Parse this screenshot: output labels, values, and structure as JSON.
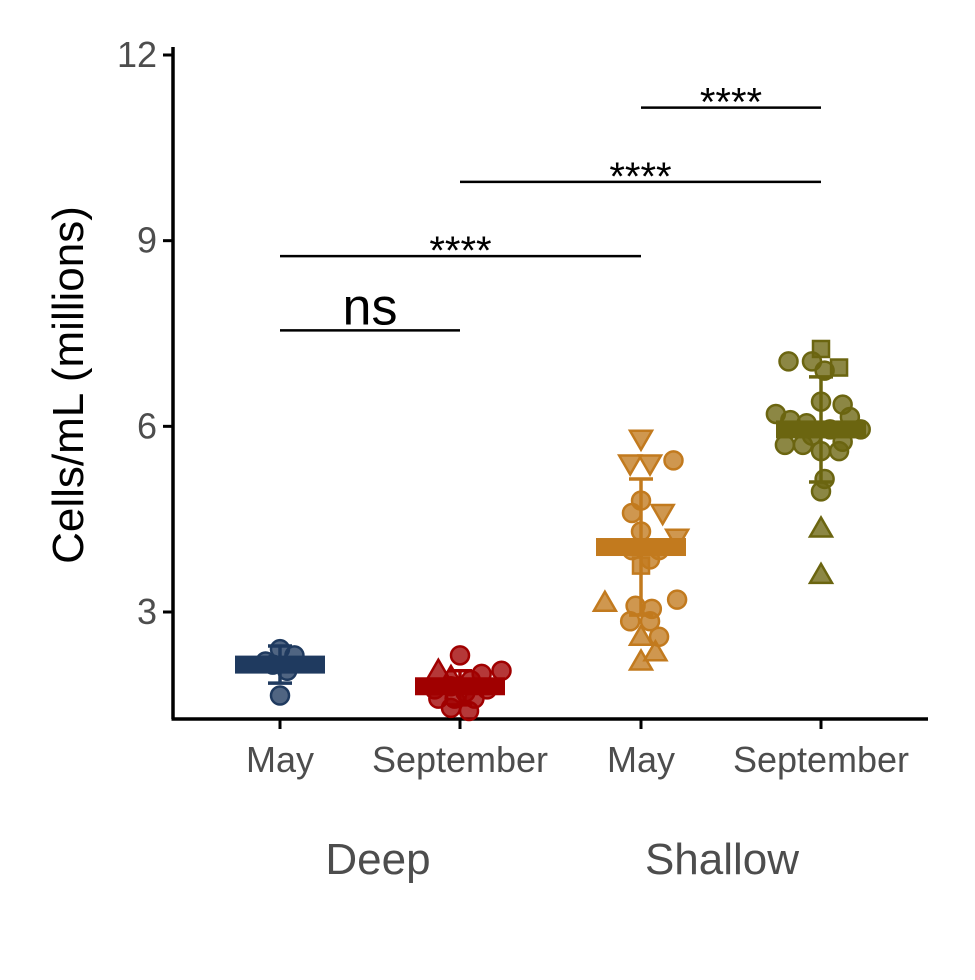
{
  "chart_data": {
    "type": "scatter",
    "ylabel": "Cells/mL (millions)",
    "ylim": [
      1.3,
      12.1
    ],
    "yticks": [
      3,
      6,
      9,
      12
    ],
    "categories": [
      "May",
      "September",
      "May",
      "September"
    ],
    "groups": [
      {
        "label": "Deep",
        "categories": [
          0,
          1
        ]
      },
      {
        "label": "Shallow",
        "categories": [
          2,
          3
        ]
      }
    ],
    "series": [
      {
        "category": 0,
        "color": "#1f3a5f",
        "mean": 2.15,
        "sd_low": 1.85,
        "sd_high": 2.45,
        "points": [
          {
            "x": 0.0,
            "y": 2.4,
            "shape": "circle"
          },
          {
            "x": 0.08,
            "y": 2.3,
            "shape": "circle"
          },
          {
            "x": -0.04,
            "y": 2.15,
            "shape": "circle"
          },
          {
            "x": 0.04,
            "y": 2.05,
            "shape": "circle"
          },
          {
            "x": -0.08,
            "y": 2.2,
            "shape": "circle"
          },
          {
            "x": 0.0,
            "y": 1.65,
            "shape": "circle"
          }
        ]
      },
      {
        "category": 1,
        "color": "#a00000",
        "mean": 1.8,
        "sd_low": 1.5,
        "sd_high": 2.05,
        "points": [
          {
            "x": 0.0,
            "y": 2.3,
            "shape": "circle"
          },
          {
            "x": -0.12,
            "y": 2.05,
            "shape": "triangle-up"
          },
          {
            "x": -0.05,
            "y": 1.95,
            "shape": "triangle-up"
          },
          {
            "x": 0.06,
            "y": 1.9,
            "shape": "circle"
          },
          {
            "x": 0.12,
            "y": 2.0,
            "shape": "circle"
          },
          {
            "x": 0.23,
            "y": 2.05,
            "shape": "circle"
          },
          {
            "x": -0.14,
            "y": 1.75,
            "shape": "circle"
          },
          {
            "x": -0.05,
            "y": 1.8,
            "shape": "circle"
          },
          {
            "x": 0.03,
            "y": 1.7,
            "shape": "circle"
          },
          {
            "x": 0.15,
            "y": 1.75,
            "shape": "circle"
          },
          {
            "x": -0.12,
            "y": 1.6,
            "shape": "circle"
          },
          {
            "x": -0.03,
            "y": 1.6,
            "shape": "circle"
          },
          {
            "x": 0.08,
            "y": 1.6,
            "shape": "circle"
          },
          {
            "x": -0.05,
            "y": 1.45,
            "shape": "circle"
          },
          {
            "x": 0.05,
            "y": 1.4,
            "shape": "circle"
          }
        ]
      },
      {
        "category": 2,
        "color": "#c27a1e",
        "mean": 4.05,
        "sd_low": 2.95,
        "sd_high": 5.15,
        "points": [
          {
            "x": 0.0,
            "y": 5.8,
            "shape": "triangle-down"
          },
          {
            "x": -0.06,
            "y": 5.4,
            "shape": "triangle-down"
          },
          {
            "x": 0.05,
            "y": 5.4,
            "shape": "triangle-down"
          },
          {
            "x": 0.18,
            "y": 5.45,
            "shape": "circle"
          },
          {
            "x": 0.0,
            "y": 4.8,
            "shape": "circle"
          },
          {
            "x": -0.05,
            "y": 4.6,
            "shape": "circle"
          },
          {
            "x": 0.12,
            "y": 4.6,
            "shape": "triangle-down"
          },
          {
            "x": 0.0,
            "y": 4.3,
            "shape": "circle"
          },
          {
            "x": 0.2,
            "y": 4.2,
            "shape": "triangle-down"
          },
          {
            "x": -0.05,
            "y": 4.0,
            "shape": "circle"
          },
          {
            "x": 0.1,
            "y": 4.0,
            "shape": "circle"
          },
          {
            "x": 0.05,
            "y": 3.85,
            "shape": "circle"
          },
          {
            "x": 0.0,
            "y": 3.75,
            "shape": "square"
          },
          {
            "x": -0.2,
            "y": 3.15,
            "shape": "triangle-up"
          },
          {
            "x": -0.03,
            "y": 3.1,
            "shape": "circle"
          },
          {
            "x": 0.06,
            "y": 3.05,
            "shape": "circle"
          },
          {
            "x": 0.2,
            "y": 3.2,
            "shape": "circle"
          },
          {
            "x": -0.06,
            "y": 2.85,
            "shape": "circle"
          },
          {
            "x": 0.05,
            "y": 2.85,
            "shape": "circle"
          },
          {
            "x": 0.0,
            "y": 2.6,
            "shape": "triangle-up"
          },
          {
            "x": 0.1,
            "y": 2.6,
            "shape": "circle"
          },
          {
            "x": 0.08,
            "y": 2.35,
            "shape": "triangle-up"
          },
          {
            "x": 0.0,
            "y": 2.2,
            "shape": "triangle-up"
          }
        ]
      },
      {
        "category": 3,
        "color": "#6b6510",
        "mean": 5.95,
        "sd_low": 5.1,
        "sd_high": 6.8,
        "points": [
          {
            "x": 0.0,
            "y": 7.25,
            "shape": "square"
          },
          {
            "x": 0.1,
            "y": 6.95,
            "shape": "square"
          },
          {
            "x": -0.18,
            "y": 7.05,
            "shape": "circle"
          },
          {
            "x": -0.05,
            "y": 7.05,
            "shape": "circle"
          },
          {
            "x": 0.02,
            "y": 6.9,
            "shape": "circle"
          },
          {
            "x": 0.0,
            "y": 6.4,
            "shape": "circle"
          },
          {
            "x": 0.12,
            "y": 6.35,
            "shape": "circle"
          },
          {
            "x": -0.25,
            "y": 6.2,
            "shape": "circle"
          },
          {
            "x": -0.17,
            "y": 6.1,
            "shape": "circle"
          },
          {
            "x": -0.08,
            "y": 6.05,
            "shape": "circle"
          },
          {
            "x": 0.16,
            "y": 6.15,
            "shape": "circle"
          },
          {
            "x": 0.05,
            "y": 5.95,
            "shape": "circle"
          },
          {
            "x": -0.05,
            "y": 5.85,
            "shape": "circle"
          },
          {
            "x": 0.22,
            "y": 5.95,
            "shape": "circle"
          },
          {
            "x": -0.2,
            "y": 5.7,
            "shape": "circle"
          },
          {
            "x": -0.1,
            "y": 5.7,
            "shape": "circle"
          },
          {
            "x": 0.12,
            "y": 5.75,
            "shape": "circle"
          },
          {
            "x": 0.0,
            "y": 5.6,
            "shape": "circle"
          },
          {
            "x": 0.1,
            "y": 5.6,
            "shape": "circle"
          },
          {
            "x": 0.02,
            "y": 5.15,
            "shape": "circle"
          },
          {
            "x": 0.0,
            "y": 4.95,
            "shape": "circle"
          },
          {
            "x": 0.0,
            "y": 4.35,
            "shape": "triangle-up"
          },
          {
            "x": 0.0,
            "y": 3.6,
            "shape": "triangle-up"
          }
        ]
      }
    ],
    "comparisons": [
      {
        "from": 0,
        "to": 1,
        "y": 7.55,
        "label": "ns",
        "size": "large"
      },
      {
        "from": 0,
        "to": 2,
        "y": 8.75,
        "label": "****",
        "size": "small"
      },
      {
        "from": 1,
        "to": 3,
        "y": 9.95,
        "label": "****",
        "size": "small"
      },
      {
        "from": 2,
        "to": 3,
        "y": 11.15,
        "label": "****",
        "size": "small"
      }
    ],
    "grid": false
  }
}
